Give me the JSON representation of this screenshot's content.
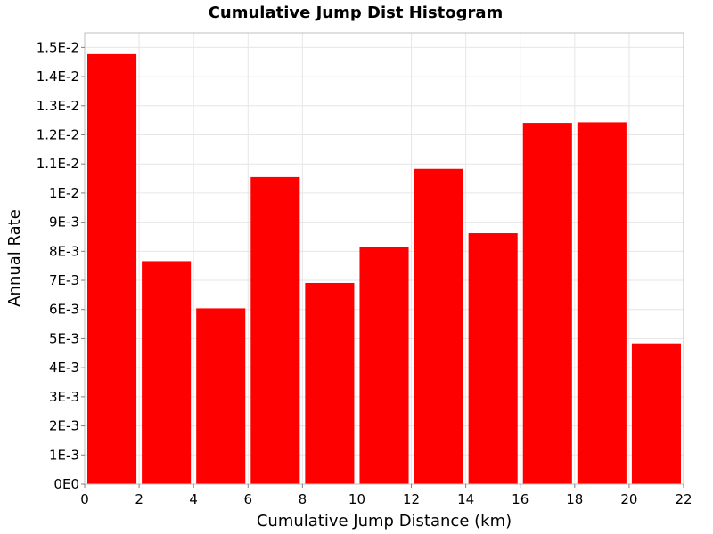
{
  "chart_data": {
    "type": "bar",
    "title": "Cumulative Jump Dist Histogram",
    "xlabel": "Cumulative Jump Distance (km)",
    "ylabel": "Annual Rate",
    "bar_color": "#ff0000",
    "grid_color": "#e6e6e6",
    "background": "#ffffff",
    "grid": true,
    "xlim": [
      0,
      22
    ],
    "ylim": [
      0,
      0.0155
    ],
    "x_ticks": [
      0,
      2,
      4,
      6,
      8,
      10,
      12,
      14,
      16,
      18,
      20,
      22
    ],
    "x_tick_labels": [
      "0",
      "2",
      "4",
      "6",
      "8",
      "10",
      "12",
      "14",
      "16",
      "18",
      "20",
      "22"
    ],
    "y_ticks": [
      0,
      0.001,
      0.002,
      0.003,
      0.004,
      0.005,
      0.006,
      0.007,
      0.008,
      0.009,
      0.01,
      0.011,
      0.012,
      0.013,
      0.014,
      0.015
    ],
    "y_tick_labels": [
      "0E0",
      "1E-3",
      "2E-3",
      "3E-3",
      "4E-3",
      "5E-3",
      "6E-3",
      "7E-3",
      "8E-3",
      "9E-3",
      "1E-2",
      "1.1E-2",
      "1.2E-2",
      "1.3E-2",
      "1.4E-2",
      "1.5E-2"
    ],
    "bin_width": 2,
    "bins": [
      {
        "x": 1,
        "value": 0.01477
      },
      {
        "x": 3,
        "value": 0.00766
      },
      {
        "x": 5,
        "value": 0.00604
      },
      {
        "x": 7,
        "value": 0.01055
      },
      {
        "x": 9,
        "value": 0.00691
      },
      {
        "x": 11,
        "value": 0.00815
      },
      {
        "x": 13,
        "value": 0.01083
      },
      {
        "x": 15,
        "value": 0.00862
      },
      {
        "x": 17,
        "value": 0.01241
      },
      {
        "x": 19,
        "value": 0.01243
      },
      {
        "x": 21,
        "value": 0.00484
      }
    ]
  }
}
